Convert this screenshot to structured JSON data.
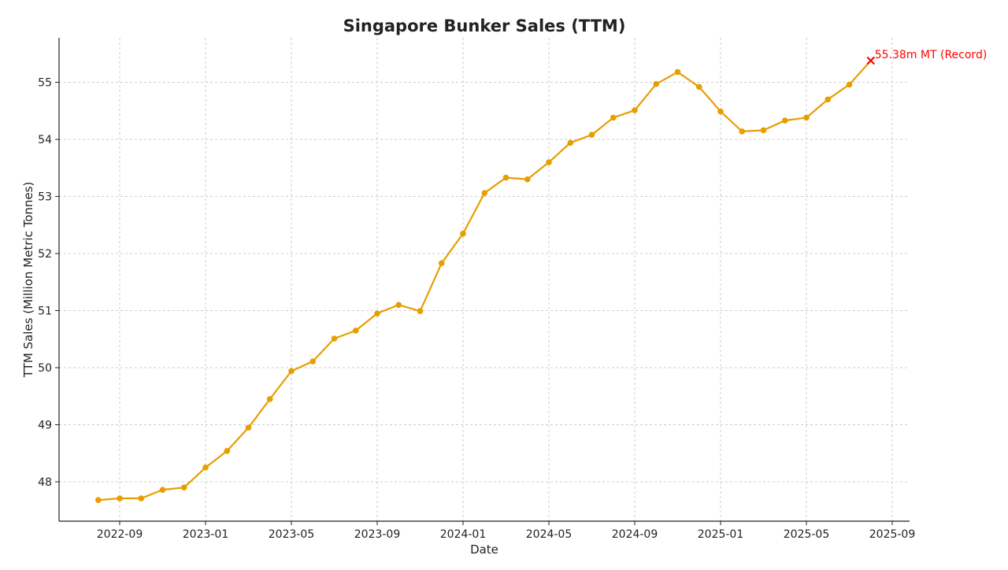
{
  "chart_data": {
    "type": "line",
    "title": "Singapore Bunker Sales (TTM)",
    "xlabel": "Date",
    "ylabel": "TTM Sales (Million Metric Tonnes)",
    "grid": true,
    "line_color": "#E69F00",
    "annotation_color": "#FF0000",
    "xlim": [
      "2022-06",
      "2025-10"
    ],
    "ylim": [
      47.31,
      55.78
    ],
    "x_ticks": [
      "2022-09",
      "2023-01",
      "2023-05",
      "2023-09",
      "2024-01",
      "2024-05",
      "2024-09",
      "2025-01",
      "2025-05",
      "2025-09"
    ],
    "y_ticks": [
      48,
      49,
      50,
      51,
      52,
      53,
      54,
      55
    ],
    "x": [
      "2022-08",
      "2022-09",
      "2022-10",
      "2022-11",
      "2022-12",
      "2023-01",
      "2023-02",
      "2023-03",
      "2023-04",
      "2023-05",
      "2023-06",
      "2023-07",
      "2023-08",
      "2023-09",
      "2023-10",
      "2023-11",
      "2023-12",
      "2024-01",
      "2024-02",
      "2024-03",
      "2024-04",
      "2024-05",
      "2024-06",
      "2024-07",
      "2024-08",
      "2024-09",
      "2024-10",
      "2024-11",
      "2024-12",
      "2025-01",
      "2025-02",
      "2025-03",
      "2025-04",
      "2025-05",
      "2025-06",
      "2025-07",
      "2025-08"
    ],
    "values": [
      47.68,
      47.71,
      47.71,
      47.86,
      47.9,
      48.25,
      48.54,
      48.95,
      49.45,
      49.94,
      50.11,
      50.51,
      50.65,
      50.95,
      51.1,
      50.99,
      51.83,
      52.35,
      53.06,
      53.33,
      53.3,
      53.6,
      53.94,
      54.08,
      54.38,
      54.51,
      54.97,
      55.18,
      54.92,
      54.49,
      54.14,
      54.16,
      54.33,
      54.38,
      54.7,
      54.96,
      55.38
    ],
    "annotation": {
      "x": "2025-08",
      "y": 55.38,
      "text": "55.38m MT (Record)",
      "marker": "x"
    }
  }
}
